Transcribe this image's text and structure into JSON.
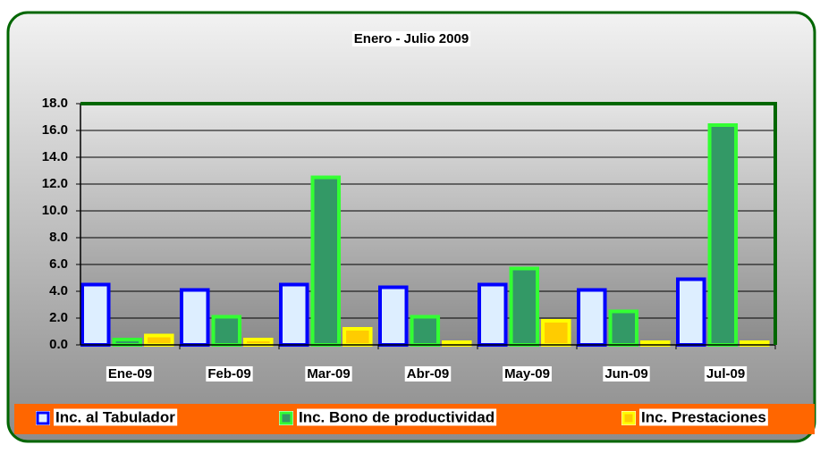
{
  "chart_data": {
    "type": "bar",
    "title": "Enero - Julio 2009",
    "categories": [
      "Ene-09",
      "Feb-09",
      "Mar-09",
      "Abr-09",
      "May-09",
      "Jun-09",
      "Jul-09"
    ],
    "series": [
      {
        "name": "Inc. al Tabulador",
        "color": "#ddeeff",
        "edge_color": "#0000ff",
        "values": [
          4.5,
          4.1,
          4.5,
          4.3,
          4.5,
          4.1,
          4.9
        ]
      },
      {
        "name": "Inc. Bono de productividad",
        "color": "#339966",
        "edge_color": "#33ff33",
        "values": [
          0.4,
          2.1,
          12.5,
          2.1,
          5.7,
          2.5,
          16.4
        ]
      },
      {
        "name": "Inc. Prestaciones",
        "color": "#ffcc00",
        "edge_color": "#ffff00",
        "values": [
          0.7,
          0.4,
          1.2,
          0.2,
          1.8,
          0.2,
          0.2
        ]
      }
    ],
    "ylim": [
      0,
      18
    ],
    "yticks": [
      {
        "value": 0,
        "label": "0.0"
      },
      {
        "value": 2,
        "label": "2.0"
      },
      {
        "value": 4,
        "label": "4.0"
      },
      {
        "value": 6,
        "label": "6.0"
      },
      {
        "value": 8,
        "label": "8.0"
      },
      {
        "value": 10,
        "label": "10.0"
      },
      {
        "value": 12,
        "label": "12.0"
      },
      {
        "value": 14,
        "label": "14.0"
      },
      {
        "value": 16,
        "label": "16.0"
      },
      {
        "value": 18,
        "label": "18.0"
      }
    ],
    "grid": true,
    "legend": "bottom"
  }
}
